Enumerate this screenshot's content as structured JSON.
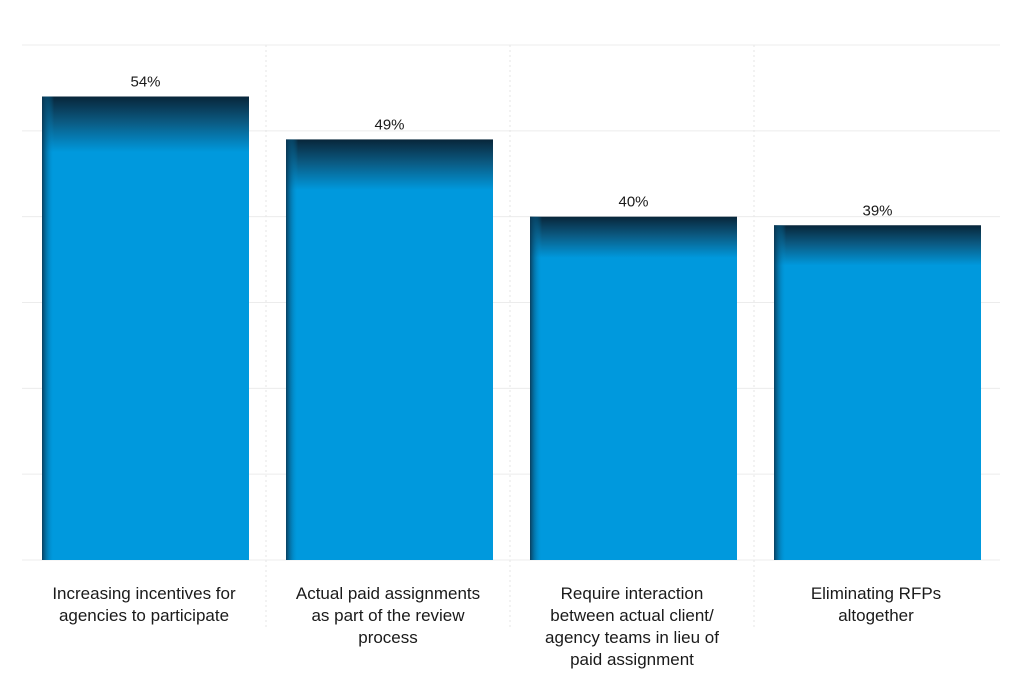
{
  "chart_data": {
    "type": "bar",
    "categories": [
      "Increasing incentives for\nagencies to participate",
      "Actual paid assignments\nas part of the review\nprocess",
      "Require interaction\nbetween actual client/\nagency teams in lieu of\npaid assignment",
      "Eliminating RFPs\naltogether"
    ],
    "values": [
      54,
      49,
      40,
      39
    ],
    "data_labels": [
      "54%",
      "49%",
      "40%",
      "39%"
    ],
    "ylim": [
      0,
      60
    ],
    "grid": true,
    "bar_color": "#0099dd"
  }
}
